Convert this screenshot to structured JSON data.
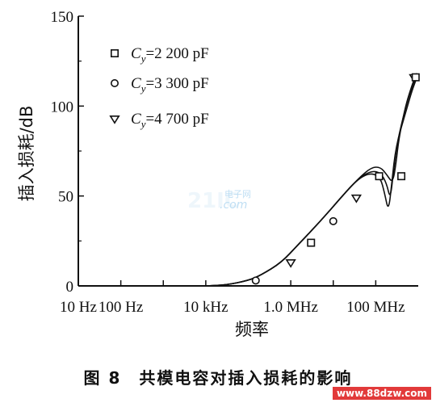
{
  "chart_data": {
    "type": "line",
    "title": "",
    "xlabel": "频率",
    "ylabel": "插入损耗/dB",
    "x_scale": "log",
    "x_unit": "Hz",
    "xlim": [
      10,
      1000000000
    ],
    "ylim": [
      0,
      150
    ],
    "x_ticks": [
      {
        "value": 10,
        "label": "10 Hz"
      },
      {
        "value": 100,
        "label": "100 Hz"
      },
      {
        "value": 10000,
        "label": "10 kHz"
      },
      {
        "value": 1000000,
        "label": "1.0 MHz"
      },
      {
        "value": 100000000,
        "label": "100 MHz"
      }
    ],
    "x_minor_ticks": [
      1000,
      10000000
    ],
    "y_ticks": [
      0,
      50,
      100,
      150
    ],
    "grid": false,
    "legend_position": "top-left",
    "series": [
      {
        "name": "C_y=2 200 pF",
        "legend_main": "C",
        "legend_sub": "y",
        "legend_rest": "=2 200 pF",
        "marker": "square",
        "x": [
          10000,
          30000,
          100000,
          200000,
          600000,
          1500000,
          5000000,
          15000000,
          40000000,
          80000000,
          130000000,
          180000000,
          250000000,
          300000000,
          350000000,
          500000000,
          700000000,
          900000000
        ],
        "y": [
          0,
          0.5,
          3,
          6,
          13,
          23,
          36,
          49,
          60,
          66,
          66,
          62,
          57,
          68,
          82,
          100,
          111,
          118
        ]
      },
      {
        "name": "C_y=3 300 pF",
        "legend_main": "C",
        "legend_sub": "y",
        "legend_rest": "=3 300 pF",
        "marker": "circle",
        "x": [
          10000,
          30000,
          100000,
          200000,
          600000,
          1500000,
          5000000,
          15000000,
          40000000,
          80000000,
          130000000,
          180000000,
          220000000,
          260000000,
          320000000,
          500000000,
          700000000,
          900000000
        ],
        "y": [
          0,
          0.5,
          3,
          6,
          13,
          23,
          36,
          49,
          60,
          64,
          63,
          57,
          48,
          63,
          80,
          99,
          110,
          116
        ]
      },
      {
        "name": "C_y=4 700 pF",
        "legend_main": "C",
        "legend_sub": "y",
        "legend_rest": "=4 700 pF",
        "marker": "triangle-down",
        "x": [
          10000,
          30000,
          100000,
          200000,
          600000,
          1500000,
          5000000,
          15000000,
          40000000,
          80000000,
          130000000,
          160000000,
          200000000,
          240000000,
          300000000,
          500000000,
          700000000,
          900000000
        ],
        "y": [
          0,
          0.5,
          3,
          6,
          13,
          23,
          36,
          49,
          60,
          63,
          60,
          52,
          41,
          58,
          78,
          96,
          108,
          115
        ]
      }
    ],
    "markers": [
      {
        "x": 150000,
        "y": 3,
        "shape": "circle"
      },
      {
        "x": 1000000,
        "y": 13,
        "shape": "triangle-down"
      },
      {
        "x": 3000000,
        "y": 24,
        "shape": "square"
      },
      {
        "x": 10000000,
        "y": 36,
        "shape": "circle"
      },
      {
        "x": 35000000,
        "y": 49,
        "shape": "triangle-down"
      },
      {
        "x": 120000000,
        "y": 61,
        "shape": "square"
      },
      {
        "x": 400000000,
        "y": 61,
        "shape": "square"
      },
      {
        "x": 800000000,
        "y": 116,
        "shape": "triangle-down"
      },
      {
        "x": 870000000,
        "y": 116,
        "shape": "square"
      }
    ]
  },
  "caption": "图 8　共模电容对插入损耗的影响",
  "watermark": {
    "logo_cn": "电子网",
    "logo_big": "21IC",
    "logo_com": ".com",
    "url": "www.88dzw.com"
  }
}
